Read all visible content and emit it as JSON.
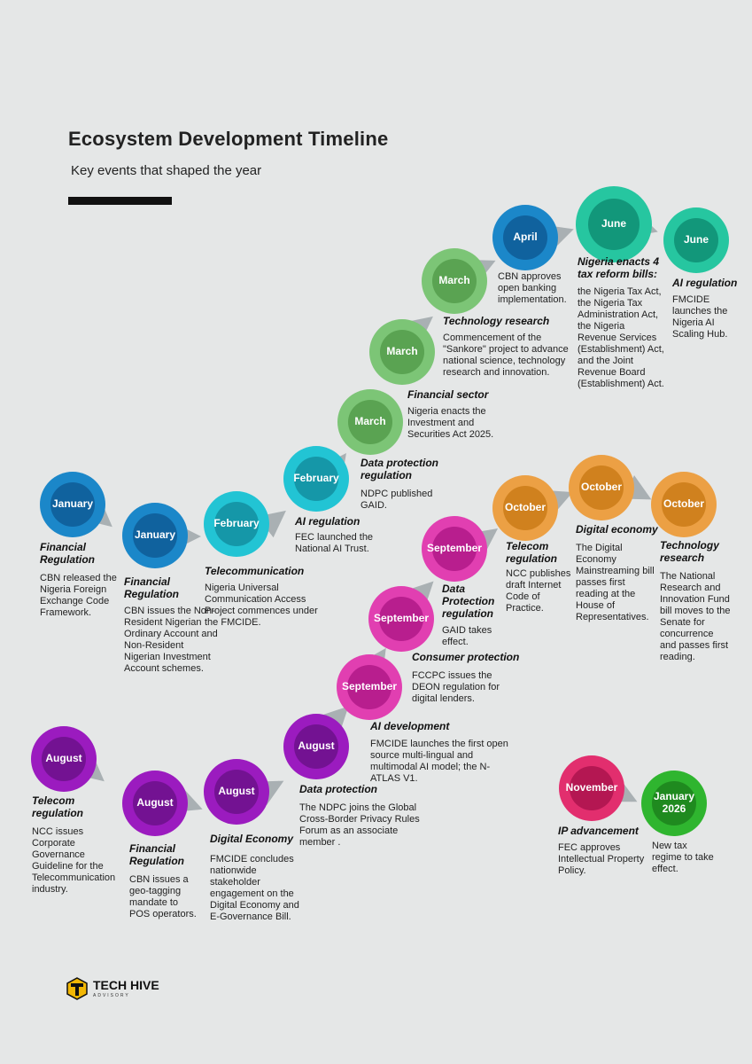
{
  "title": "Ecosystem Development Timeline",
  "subtitle": "Key events that shaped the year",
  "events": [
    {
      "date": "January",
      "category": "Financial Regulation",
      "desc": "CBN released the Nigeria Foreign Exchange Code Framework."
    },
    {
      "date": "January",
      "category": "Financial Regulation",
      "desc": "CBN issues the Non-Resident Nigerian Ordinary Account and Non-Resident Nigerian Investment Account schemes."
    },
    {
      "date": "February",
      "category": "Telecommunication",
      "desc": "Nigeria Universal Communication Access Project commences under the FMCIDE."
    },
    {
      "date": "February",
      "category": "AI regulation",
      "desc": "FEC launched the National AI Trust."
    },
    {
      "date": "March",
      "category": "Data protection regulation",
      "desc": "NDPC published GAID."
    },
    {
      "date": "March",
      "category": "Financial sector",
      "desc": "Nigeria enacts the Investment and Securities Act 2025."
    },
    {
      "date": "March",
      "category": "Technology research",
      "desc": "Commencement of the \"Sankore\" project to advance national science, technology research and innovation."
    },
    {
      "date": "April",
      "category": "",
      "desc": "CBN approves open banking implementation."
    },
    {
      "date": "June",
      "category": "Nigeria enacts 4 tax reform bills:",
      "desc": "the Nigeria Tax Act, the Nigeria Tax Administration Act, the Nigeria Revenue Services (Establishment) Act, and the Joint Revenue Board (Establishment) Act."
    },
    {
      "date": "June",
      "category": "AI regulation",
      "desc": "FMCIDE launches the Nigeria AI Scaling Hub."
    },
    {
      "date": "August",
      "category": "Telecom regulation",
      "desc": "NCC issues Corporate Governance Guideline for the Telecommunication industry."
    },
    {
      "date": "August",
      "category": "Financial Regulation",
      "desc": "CBN issues a geo-tagging mandate to POS operators."
    },
    {
      "date": "August",
      "category": "Digital Economy",
      "desc": "FMCIDE concludes nationwide stakeholder engagement on the Digital Economy and E-Governance Bill."
    },
    {
      "date": "August",
      "category": "Data protection",
      "desc": "The NDPC joins the Global Cross-Border Privacy Rules Forum as an associate member ."
    },
    {
      "date": "September",
      "category": "AI development",
      "desc": "FMCIDE launches the first open source multi-lingual and multimodal AI model; the N-ATLAS V1."
    },
    {
      "date": "September",
      "category": "Consumer protection",
      "desc": "FCCPC issues the DEON regulation for digital lenders."
    },
    {
      "date": "September",
      "category": "Data Protection regulation",
      "desc": "GAID takes effect."
    },
    {
      "date": "October",
      "category": "Telecom regulation",
      "desc": "NCC publishes draft Internet Code of Practice."
    },
    {
      "date": "October",
      "category": "Digital economy",
      "desc": "The Digital Economy Mainstreaming bill passes first reading at the House of Representatives."
    },
    {
      "date": "October",
      "category": "Technology research",
      "desc": "The National Research and Innovation Fund bill moves to the Senate for concurrence and passes first reading."
    },
    {
      "date": "November",
      "category": "IP advancement",
      "desc": "FEC approves Intellectual Property Policy."
    },
    {
      "date": "January 2026",
      "category": "",
      "desc": "New tax regime to take effect."
    }
  ],
  "logo": {
    "name": "TECH HIVE",
    "sub": "ADVISORY"
  },
  "colors": {
    "blue": "#1b87c9",
    "cyan": "#22c4d4",
    "green": "#7cc576",
    "teal": "#26c6a0",
    "orange": "#eca044",
    "magenta": "#e13fb1",
    "purple": "#9b1bbf",
    "crimson": "#e22e6e",
    "lime": "#2fb52f"
  }
}
